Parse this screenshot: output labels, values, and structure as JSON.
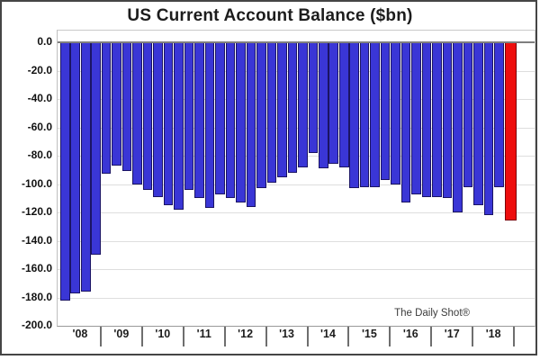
{
  "title": "US Current Account Balance ($bn)",
  "source_label": "The Daily Shot®",
  "y_axis": {
    "tick_labels": [
      "0.0",
      "-20.0",
      "-40.0",
      "-60.0",
      "-80.0",
      "-100.0",
      "-120.0",
      "-140.0",
      "-160.0",
      "-180.0",
      "-200.0"
    ]
  },
  "x_axis": {
    "year_labels": [
      "'08",
      "'09",
      "'10",
      "'11",
      "'12",
      "'13",
      "'14",
      "'15",
      "'16",
      "'17",
      "'18"
    ]
  },
  "chart_data": {
    "type": "bar",
    "title": "US Current Account Balance ($bn)",
    "unit": "$bn",
    "frequency": "quarterly",
    "years": [
      "'08",
      "'09",
      "'10",
      "'11",
      "'12",
      "'13",
      "'14",
      "'15",
      "'16",
      "'17",
      "'18"
    ],
    "bars_per_year": 4,
    "values": [
      -182,
      -177,
      -176,
      -150,
      -93,
      -87,
      -91,
      -100,
      -104,
      -109,
      -115,
      -118,
      -104,
      -110,
      -117,
      -107,
      -110,
      -113,
      -116,
      -103,
      -99,
      -95,
      -92,
      -88,
      -78,
      -89,
      -86,
      -88,
      -103,
      -102,
      -102,
      -97,
      -100,
      -113,
      -107,
      -109,
      -109,
      -110,
      -120,
      -102,
      -115,
      -122,
      -102,
      -126
    ],
    "highlight_last_bar": true,
    "ylim": [
      -200,
      0
    ],
    "ytick_step": 20,
    "grid": "horizontal",
    "legend": "none",
    "colors": {
      "bar": "#3a36d6",
      "bar_border": "#1b1464",
      "highlight": "#ee0d0d",
      "highlight_border": "#7a0008",
      "zero_line": "#7f7f7f",
      "gridline": "#dedede"
    }
  }
}
